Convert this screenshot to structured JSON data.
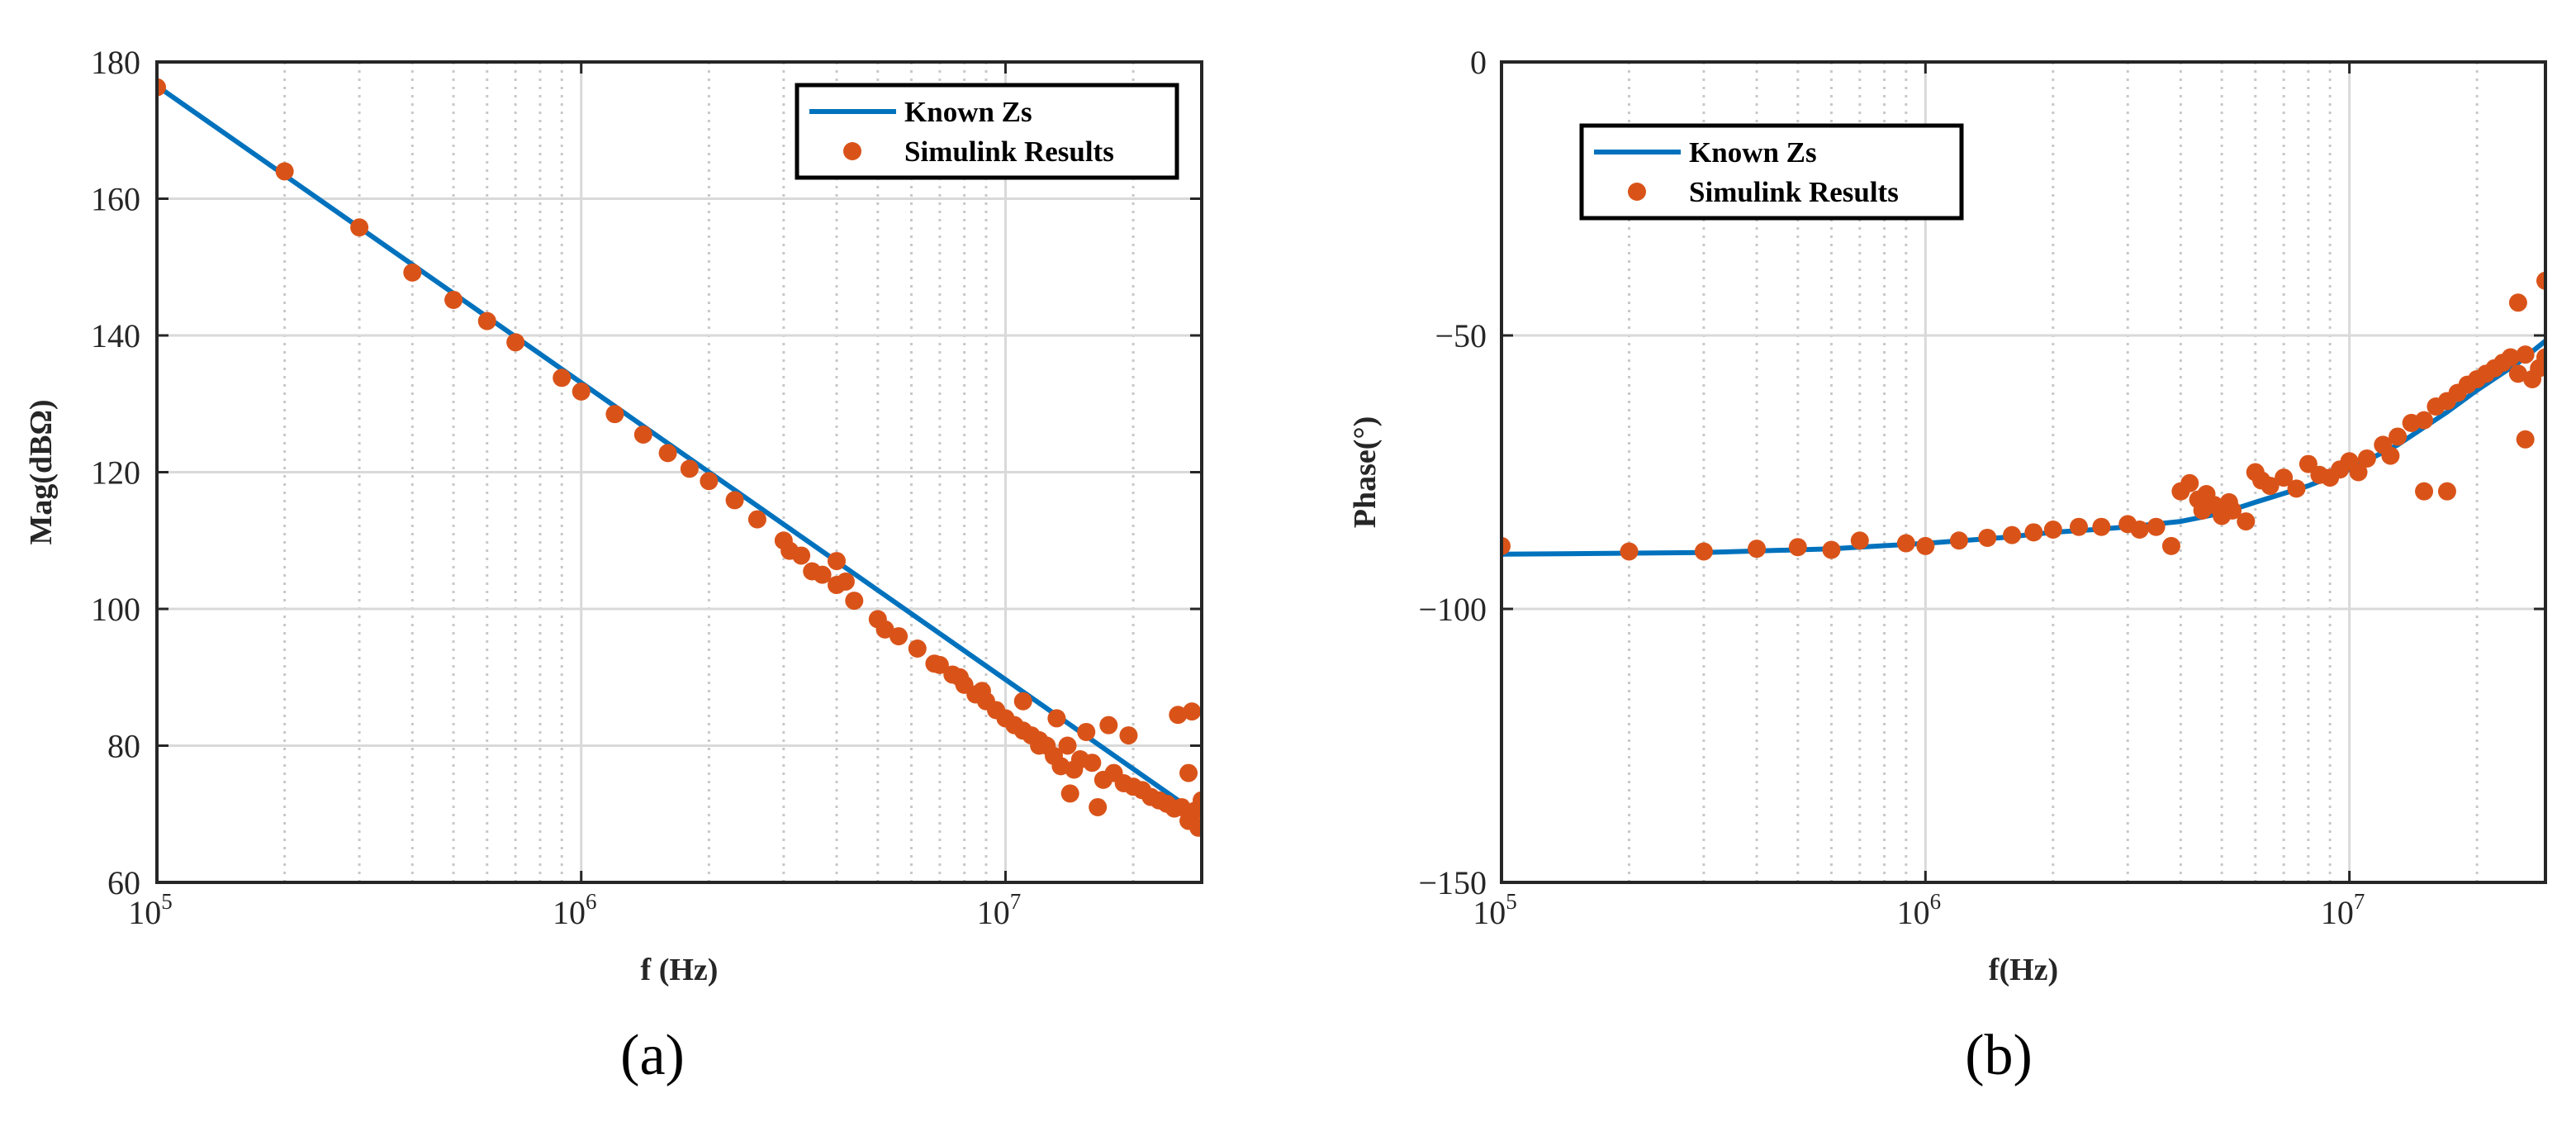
{
  "figure": {
    "colors": {
      "line": "#0072BD",
      "marker": "#D95319",
      "grid": "#D9D9D9",
      "axis": "#262626"
    }
  },
  "chart_data": [
    {
      "id": "a",
      "type": "line+scatter",
      "panel_label": "(a)",
      "xlabel": "f (Hz)",
      "ylabel": "Mag(dBΩ)",
      "xscale": "log",
      "xlim": [
        100000,
        29000000
      ],
      "ylim": [
        60,
        180
      ],
      "yticks": [
        60,
        80,
        100,
        120,
        140,
        160,
        180
      ],
      "ytick_labels": [
        "60",
        "80",
        "100",
        "120",
        "140",
        "160",
        "180"
      ],
      "xticks": [
        {
          "value": 100000,
          "base": "10",
          "exp": "5"
        },
        {
          "value": 1000000,
          "base": "10",
          "exp": "6"
        },
        {
          "value": 10000000,
          "base": "10",
          "exp": "7"
        }
      ],
      "legend_position": "top-right",
      "series": [
        {
          "name": "Known Zs",
          "kind": "line",
          "x": [
            100000,
            29000000
          ],
          "y": [
            176.5,
            69.6
          ]
        },
        {
          "name": "Simulink Results",
          "kind": "scatter",
          "x": [
            100000,
            200000,
            300000,
            400000,
            500000,
            600000,
            700000,
            900000,
            1000000,
            1200000,
            1400000,
            1600000,
            1800000,
            2000000,
            2300000,
            2600000,
            3000000,
            3300000,
            3700000,
            4000000,
            4400000,
            5000000,
            5600000,
            6200000,
            7000000,
            7500000,
            8000000,
            8500000,
            9000000,
            9500000,
            10000000,
            10500000,
            11000000,
            11500000,
            12000000,
            12500000,
            13000000,
            13500000,
            14000000,
            14500000,
            15000000,
            16000000,
            17000000,
            18000000,
            19000000,
            20000000,
            21000000,
            22000000,
            23000000,
            24000000,
            25000000,
            26000000,
            27000000,
            28000000,
            29000000,
            3100000,
            3500000,
            4000000,
            4200000,
            5200000,
            6800000,
            7800000,
            8800000,
            11000000,
            12000000,
            13200000,
            14200000,
            15500000,
            16500000,
            17500000,
            19500000,
            25500000,
            27000000,
            27500000,
            28500000
          ],
          "y": [
            176.3,
            164.0,
            155.8,
            149.2,
            145.2,
            142.1,
            139.0,
            133.8,
            131.8,
            128.5,
            125.5,
            122.8,
            120.5,
            118.7,
            115.9,
            113.1,
            110.0,
            107.8,
            105.0,
            103.5,
            101.2,
            98.5,
            96.0,
            94.2,
            91.8,
            90.4,
            88.9,
            87.5,
            86.5,
            85.2,
            84.0,
            83.0,
            82.2,
            81.5,
            80.8,
            80.0,
            78.5,
            77.0,
            80.0,
            76.5,
            78.0,
            77.5,
            75.0,
            76.0,
            74.5,
            74.0,
            73.5,
            72.5,
            72.0,
            71.5,
            70.8,
            71.0,
            69.0,
            70.5,
            72.0,
            108.5,
            105.5,
            107.0,
            104.0,
            97.0,
            92.0,
            90.0,
            88.0,
            86.5,
            80.0,
            84.0,
            73.0,
            82.0,
            71.0,
            83.0,
            81.5,
            84.5,
            76.0,
            85.0,
            68.0
          ]
        }
      ]
    },
    {
      "id": "b",
      "type": "line+scatter",
      "panel_label": "(b)",
      "xlabel": "f(Hz)",
      "ylabel": "Phase(°)",
      "xscale": "log",
      "xlim": [
        100000,
        29000000
      ],
      "ylim": [
        -150,
        0
      ],
      "yticks": [
        -150,
        -100,
        -50,
        0
      ],
      "ytick_labels": [
        "−150",
        "−100",
        "−50",
        "0"
      ],
      "xticks": [
        {
          "value": 100000,
          "base": "10",
          "exp": "5"
        },
        {
          "value": 1000000,
          "base": "10",
          "exp": "6"
        },
        {
          "value": 10000000,
          "base": "10",
          "exp": "7"
        }
      ],
      "legend_position": "upper-left",
      "series": [
        {
          "name": "Known Zs",
          "kind": "line",
          "x": [
            100000,
            300000,
            600000,
            1000000,
            1500000,
            2000000,
            2500000,
            3000000,
            4000000,
            5000000,
            6000000,
            8000000,
            10000000,
            13000000,
            17000000,
            20000000,
            25000000,
            29000000
          ],
          "y": [
            -90.0,
            -89.7,
            -89.0,
            -88.0,
            -87.0,
            -86.0,
            -85.5,
            -85.0,
            -84.0,
            -82.5,
            -80.5,
            -77.5,
            -74.5,
            -70.0,
            -64.0,
            -60.0,
            -55.0,
            -51.0
          ]
        },
        {
          "name": "Simulink Results",
          "kind": "scatter",
          "x": [
            100000,
            200000,
            300000,
            400000,
            500000,
            600000,
            700000,
            900000,
            1000000,
            1200000,
            1400000,
            1600000,
            1800000,
            2000000,
            2300000,
            2600000,
            3000000,
            3200000,
            3500000,
            3800000,
            4000000,
            4200000,
            4400000,
            4600000,
            4800000,
            5000000,
            5300000,
            5700000,
            6000000,
            6500000,
            7000000,
            7500000,
            8000000,
            8500000,
            9000000,
            9500000,
            10000000,
            10500000,
            11000000,
            12000000,
            13000000,
            14000000,
            15000000,
            16000000,
            17000000,
            18000000,
            19000000,
            20000000,
            21000000,
            22000000,
            23000000,
            24000000,
            25000000,
            26000000,
            27000000,
            28000000,
            29000000,
            15000000,
            17000000,
            25000000,
            26000000,
            29000000,
            5200000,
            6200000,
            12500000,
            4500000
          ],
          "y": [
            -88.5,
            -89.5,
            -89.5,
            -89.0,
            -88.7,
            -89.2,
            -87.5,
            -88.0,
            -88.5,
            -87.5,
            -87.0,
            -86.5,
            -86.0,
            -85.5,
            -85.0,
            -85.0,
            -84.5,
            -85.5,
            -85.0,
            -88.5,
            -78.5,
            -77.0,
            -80.0,
            -79.0,
            -81.0,
            -83.0,
            -82.0,
            -84.0,
            -75.0,
            -77.5,
            -76.0,
            -78.0,
            -73.5,
            -75.5,
            -76.0,
            -74.5,
            -73.0,
            -75.0,
            -72.5,
            -70.0,
            -68.5,
            -66.0,
            -65.5,
            -63.0,
            -62.0,
            -60.5,
            -59.0,
            -58.0,
            -57.0,
            -56.0,
            -55.0,
            -54.0,
            -57.0,
            -53.5,
            -58.0,
            -56.0,
            -54.0,
            -78.5,
            -78.5,
            -44.0,
            -69.0,
            -40.0,
            -80.5,
            -76.5,
            -72.0,
            -82.0
          ]
        }
      ]
    }
  ]
}
